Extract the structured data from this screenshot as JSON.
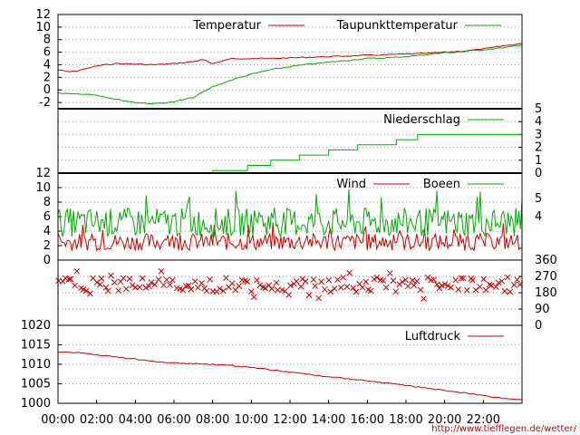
{
  "watermark": "http://www.tiefflegen.de/wetter/",
  "x_ticks": [
    "00:00",
    "02:00",
    "04:00",
    "06:00",
    "08:00",
    "10:00",
    "12:00",
    "14:00",
    "16:00",
    "18:00",
    "20:00",
    "22:00"
  ],
  "colors": {
    "red": "#cc0000",
    "green": "#00aa00",
    "grid": "#999999"
  },
  "chart_data": [
    {
      "type": "line",
      "series": [
        {
          "name": "Temperatur",
          "color": "#cc0000",
          "x": [
            0,
            0.5,
            1,
            2,
            3,
            4,
            5,
            6,
            7,
            7.5,
            8,
            8.5,
            9,
            10,
            11,
            12,
            13,
            14,
            15,
            16,
            17,
            18,
            19,
            20,
            21,
            22,
            23,
            24
          ],
          "y": [
            3.2,
            2.9,
            3.0,
            3.8,
            4.2,
            4.1,
            4.0,
            4.2,
            4.5,
            4.8,
            4.2,
            4.6,
            5.0,
            5.0,
            5.0,
            5.1,
            5.2,
            5.3,
            5.4,
            5.5,
            5.6,
            5.7,
            5.8,
            6.0,
            6.2,
            6.5,
            7.0,
            7.4
          ]
        },
        {
          "name": "Taupunkttemperatur",
          "color": "#00aa00",
          "x": [
            0,
            1,
            2,
            3,
            4,
            5,
            6,
            7,
            8,
            9,
            10,
            11,
            12,
            13,
            14,
            15,
            16,
            17,
            18,
            19,
            20,
            21,
            22,
            23,
            24
          ],
          "y": [
            -0.5,
            -0.6,
            -0.8,
            -1.5,
            -2.0,
            -2.2,
            -1.9,
            -1.2,
            0.5,
            1.6,
            2.5,
            3.2,
            3.7,
            4.1,
            4.4,
            4.7,
            5.0,
            5.1,
            5.3,
            5.6,
            5.9,
            6.1,
            6.4,
            6.7,
            7.1
          ]
        }
      ],
      "ylim": [
        -3,
        12
      ],
      "yticks": [
        -2,
        0,
        2,
        4,
        6,
        8,
        10,
        12
      ],
      "xlim": [
        0,
        24
      ],
      "grid": true,
      "legend": "top-right"
    },
    {
      "type": "line",
      "series": [
        {
          "name": "Niederschlag",
          "color": "#00aa00",
          "x": [
            0,
            8.0,
            8.0,
            9.8,
            9.8,
            11.0,
            11.0,
            12.5,
            12.5,
            14.0,
            14.0,
            15.5,
            15.5,
            17.5,
            17.5,
            18.6,
            18.6,
            24
          ],
          "y": [
            0,
            0,
            0.2,
            0.2,
            0.6,
            0.6,
            1.0,
            1.0,
            1.4,
            1.4,
            1.8,
            1.8,
            2.2,
            2.2,
            2.6,
            2.6,
            3.0,
            3.0
          ]
        }
      ],
      "ylim": [
        0,
        5
      ],
      "yticks": [
        0,
        1,
        2,
        3,
        4,
        5
      ],
      "yaxis": "right",
      "xlim": [
        0,
        24
      ],
      "grid": true,
      "legend": "top-right"
    },
    {
      "type": "line",
      "series": [
        {
          "name": "Wind",
          "color": "#cc0000",
          "mean": 2.5,
          "amplitude": 1.2
        },
        {
          "name": "Boeen",
          "color": "#00aa00",
          "mean": 5.2,
          "amplitude": 2.0
        }
      ],
      "ylim": [
        0,
        12
      ],
      "yticks": [
        0,
        2,
        4,
        6,
        8,
        10,
        12
      ],
      "yticks_right": [
        4,
        5
      ],
      "xlim": [
        0,
        24
      ],
      "grid": true,
      "legend": "top-right"
    },
    {
      "type": "scatter",
      "series": [
        {
          "color": "#cc0000",
          "typical": 225,
          "spread": 40
        }
      ],
      "ylim": [
        0,
        360
      ],
      "yticks": [
        0,
        90,
        180,
        270,
        360
      ],
      "yaxis": "right",
      "xlim": [
        0,
        24
      ],
      "grid": true
    },
    {
      "type": "line",
      "series": [
        {
          "name": "Luftdruck",
          "color": "#cc0000",
          "x": [
            0,
            1,
            2,
            3,
            4,
            5,
            6,
            7,
            8,
            9,
            10,
            11,
            12,
            13,
            14,
            15,
            16,
            17,
            18,
            19,
            20,
            21,
            22,
            23,
            24
          ],
          "y": [
            1013.2,
            1013.0,
            1012.5,
            1011.9,
            1011.3,
            1010.7,
            1010.4,
            1010.2,
            1010.0,
            1009.7,
            1009.2,
            1008.6,
            1008.0,
            1007.4,
            1006.8,
            1006.3,
            1005.8,
            1005.2,
            1004.6,
            1003.9,
            1003.3,
            1002.7,
            1002.0,
            1001.3,
            1000.9
          ]
        }
      ],
      "ylim": [
        1000,
        1020
      ],
      "yticks": [
        1000,
        1005,
        1010,
        1015,
        1020
      ],
      "xlim": [
        0,
        24
      ],
      "grid": true,
      "legend": "top-right"
    }
  ]
}
